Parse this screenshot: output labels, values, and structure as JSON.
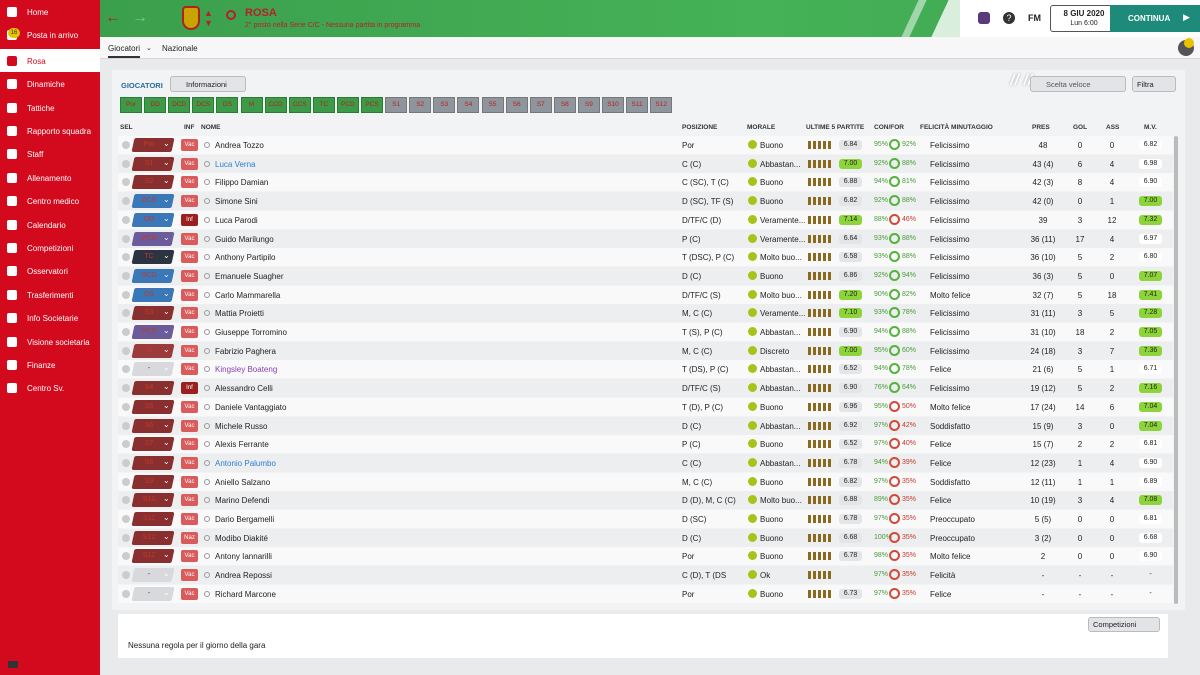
{
  "sidebar": {
    "items": [
      "Home",
      "Posta in arrivo",
      "Rosa",
      "Dinamiche",
      "Tattiche",
      "Rapporto squadra",
      "Staff",
      "Allenamento",
      "Centro medico",
      "Calendario",
      "Competizioni",
      "Osservatori",
      "Trasferimenti",
      "Info Societarie",
      "Visione societaria",
      "Finanze",
      "Centro Sv."
    ],
    "badge": "16"
  },
  "header": {
    "title": "ROSA",
    "subtitle": "2° posto nella Serie C/C - Nessuna partita in programma",
    "logo": "FM",
    "date": "8 GIU 2020",
    "time": "Lun 6:00",
    "continue": "CONTINUA"
  },
  "tabs": [
    "Giocatori",
    "Nazionale"
  ],
  "section": {
    "title": "GIOCATORI",
    "view": "Informazioni",
    "quick": "Scelta veloce",
    "filter": "Filtra"
  },
  "positions": [
    "Por",
    "DD",
    "DCD",
    "DCS",
    "DS",
    "M",
    "CCD",
    "CCS",
    "TC",
    "PCD",
    "PCS",
    "S1",
    "S2",
    "S3",
    "S4",
    "S5",
    "S6",
    "S7",
    "S8",
    "S9",
    "S10",
    "S11",
    "S12"
  ],
  "columns": [
    "SEL",
    "INF",
    "NOME",
    "POSIZIONE",
    "MORALE",
    "ULTIME 5 PARTITE",
    "CON/FOR",
    "FELICITÀ MINUTAGGIO",
    "PRES",
    "GOL",
    "ASS",
    "M.V."
  ],
  "rows": [
    {
      "role": "Por",
      "inf": "Vac",
      "name": "Andrea Tozzo",
      "position": "Por",
      "morale": "Buono",
      "rating": "6.84",
      "condition": "95%",
      "fitness": "92%",
      "happiness": "Felicissimo",
      "apps": "48",
      "goals": "0",
      "assists": "0",
      "avg": "6.82"
    },
    {
      "role": "S1",
      "inf": "Vac",
      "name": "Luca Verna",
      "name_color": "#2f7fd0",
      "position": "C (C)",
      "morale": "Abbastan...",
      "rating": "7.00",
      "condition": "92%",
      "fitness": "88%",
      "happiness": "Felicissimo",
      "apps": "43 (4)",
      "goals": "6",
      "assists": "4",
      "avg": "6.98"
    },
    {
      "role": "S2",
      "inf": "Vac",
      "name": "Filippo Damian",
      "position": "C (SC), T (C)",
      "morale": "Buono",
      "rating": "6.88",
      "condition": "94%",
      "fitness": "81%",
      "happiness": "Felicissimo",
      "apps": "42 (3)",
      "goals": "8",
      "assists": "4",
      "avg": "6.90"
    },
    {
      "role": "DCS",
      "inf": "Vac",
      "name": "Simone Sini",
      "position": "D (SC), TF (S)",
      "morale": "Buono",
      "rating": "6.82",
      "condition": "92%",
      "fitness": "88%",
      "happiness": "Felicissimo",
      "apps": "42 (0)",
      "goals": "0",
      "assists": "1",
      "avg": "7.00"
    },
    {
      "role": "DD",
      "inf": "Inf",
      "name": "Luca Parodi",
      "position": "D/TF/C (D)",
      "morale": "Veramente...",
      "rating": "7.14",
      "condition": "88%",
      "fitness": "46%",
      "happiness": "Felicissimo",
      "apps": "39",
      "goals": "3",
      "assists": "12",
      "avg": "7.32"
    },
    {
      "role": "PCD",
      "inf": "Vac",
      "name": "Guido Marilungo",
      "position": "P (C)",
      "morale": "Veramente...",
      "rating": "6.64",
      "condition": "93%",
      "fitness": "88%",
      "happiness": "Felicissimo",
      "apps": "36 (11)",
      "goals": "17",
      "assists": "4",
      "avg": "6.97"
    },
    {
      "role": "TC",
      "inf": "Vac",
      "name": "Anthony Partipilo",
      "position": "T (DSC), P (C)",
      "morale": "Molto buo...",
      "rating": "6.58",
      "condition": "93%",
      "fitness": "88%",
      "happiness": "Felicissimo",
      "apps": "36 (10)",
      "goals": "5",
      "assists": "2",
      "avg": "6.80"
    },
    {
      "role": "DCD",
      "inf": "Vac",
      "name": "Emanuele Suagher",
      "position": "D (C)",
      "morale": "Buono",
      "rating": "6.86",
      "condition": "92%",
      "fitness": "94%",
      "happiness": "Felicissimo",
      "apps": "36 (3)",
      "goals": "5",
      "assists": "0",
      "avg": "7.07"
    },
    {
      "role": "DS",
      "inf": "Vac",
      "name": "Carlo Mammarella",
      "position": "D/TF/C (S)",
      "morale": "Molto buo...",
      "rating": "7.20",
      "condition": "90%",
      "fitness": "82%",
      "happiness": "Molto felice",
      "apps": "32 (7)",
      "goals": "5",
      "assists": "18",
      "avg": "7.41"
    },
    {
      "role": "S3",
      "inf": "Vac",
      "name": "Mattia Proietti",
      "position": "M, C (C)",
      "morale": "Veramente...",
      "rating": "7.10",
      "condition": "93%",
      "fitness": "78%",
      "happiness": "Felicissimo",
      "apps": "31 (11)",
      "goals": "3",
      "assists": "5",
      "avg": "7.28"
    },
    {
      "role": "PCS",
      "inf": "Vac",
      "name": "Giuseppe Torromino",
      "position": "T (S), P (C)",
      "morale": "Abbastan...",
      "rating": "6.90",
      "condition": "94%",
      "fitness": "88%",
      "happiness": "Felicissimo",
      "apps": "31 (10)",
      "goals": "18",
      "assists": "2",
      "avg": "7.05"
    },
    {
      "role": "M",
      "inf": "Vac",
      "name": "Fabrizio Paghera",
      "position": "M, C (C)",
      "morale": "Discreto",
      "rating": "7.00",
      "condition": "95%",
      "fitness": "60%",
      "happiness": "Felicissimo",
      "apps": "24 (18)",
      "goals": "3",
      "assists": "7",
      "avg": "7.36"
    },
    {
      "role": "-",
      "inf": "Vac",
      "name": "Kingsley Boateng",
      "name_color": "#8a3fb0",
      "position": "T (DS), P (C)",
      "morale": "Abbastan...",
      "rating": "6.52",
      "condition": "94%",
      "fitness": "78%",
      "happiness": "Felice",
      "apps": "21 (6)",
      "goals": "5",
      "assists": "1",
      "avg": "6.71"
    },
    {
      "role": "S4",
      "inf": "Inf",
      "name": "Alessandro Celli",
      "position": "D/TF/C (S)",
      "morale": "Abbastan...",
      "rating": "6.90",
      "condition": "76%",
      "fitness": "64%",
      "happiness": "Felicissimo",
      "apps": "19 (12)",
      "goals": "5",
      "assists": "2",
      "avg": "7.16"
    },
    {
      "role": "S5",
      "inf": "Vac",
      "name": "Daniele Vantaggiato",
      "position": "T (D), P (C)",
      "morale": "Buono",
      "rating": "6.96",
      "condition": "95%",
      "fitness": "50%",
      "happiness": "Molto felice",
      "apps": "17 (24)",
      "goals": "14",
      "assists": "6",
      "avg": "7.04"
    },
    {
      "role": "S6",
      "inf": "Vac",
      "name": "Michele Russo",
      "position": "D (C)",
      "morale": "Abbastan...",
      "rating": "6.92",
      "condition": "97%",
      "fitness": "42%",
      "happiness": "Soddisfatto",
      "apps": "15 (9)",
      "goals": "3",
      "assists": "0",
      "avg": "7.04"
    },
    {
      "role": "S7",
      "inf": "Vac",
      "name": "Alexis Ferrante",
      "position": "P (C)",
      "morale": "Buono",
      "rating": "6.52",
      "condition": "97%",
      "fitness": "40%",
      "happiness": "Felice",
      "apps": "15 (7)",
      "goals": "2",
      "assists": "2",
      "avg": "6.81"
    },
    {
      "role": "S8",
      "inf": "Vac",
      "name": "Antonio Palumbo",
      "name_color": "#2f7fd0",
      "position": "C (C)",
      "morale": "Abbastan...",
      "rating": "6.78",
      "condition": "94%",
      "fitness": "39%",
      "happiness": "Felice",
      "apps": "12 (23)",
      "goals": "1",
      "assists": "4",
      "avg": "6.90"
    },
    {
      "role": "S9",
      "inf": "Vac",
      "name": "Aniello Salzano",
      "position": "M, C (C)",
      "morale": "Buono",
      "rating": "6.82",
      "condition": "97%",
      "fitness": "35%",
      "happiness": "Soddisfatto",
      "apps": "12 (11)",
      "goals": "1",
      "assists": "1",
      "avg": "6.89"
    },
    {
      "role": "S10",
      "inf": "Vac",
      "name": "Marino Defendi",
      "position": "D (D), M, C (C)",
      "morale": "Molto buo...",
      "rating": "6.88",
      "condition": "89%",
      "fitness": "35%",
      "happiness": "Felice",
      "apps": "10 (19)",
      "goals": "3",
      "assists": "4",
      "avg": "7.08"
    },
    {
      "role": "S11",
      "inf": "Vac",
      "name": "Dario Bergamelli",
      "position": "D (SC)",
      "morale": "Buono",
      "rating": "6.78",
      "condition": "97%",
      "fitness": "35%",
      "happiness": "Preoccupato",
      "apps": "5 (5)",
      "goals": "0",
      "assists": "0",
      "avg": "6.81"
    },
    {
      "role": "S12",
      "inf": "Naz",
      "name": "Modibo Diakité",
      "position": "D (C)",
      "morale": "Buono",
      "rating": "6.68",
      "condition": "100%",
      "fitness": "35%",
      "happiness": "Preoccupato",
      "apps": "3 (2)",
      "goals": "0",
      "assists": "0",
      "avg": "6.68"
    },
    {
      "role": "S12",
      "inf": "Vac",
      "name": "Antony Iannarilli",
      "position": "Por",
      "morale": "Buono",
      "rating": "6.78",
      "condition": "98%",
      "fitness": "35%",
      "happiness": "Molto felice",
      "apps": "2",
      "goals": "0",
      "assists": "0",
      "avg": "6.90"
    },
    {
      "role": "-",
      "inf": "Vac",
      "name": "Andrea Repossi",
      "position": "C (D), T (DS",
      "morale": "Ok",
      "condition": "97%",
      "fitness": "35%",
      "happiness": "Felicità",
      "apps": "-",
      "goals": "-",
      "assists": "-",
      "avg": "-"
    },
    {
      "role": "-",
      "inf": "Vac",
      "name": "Richard Marcone",
      "position": "Por",
      "morale": "Buono",
      "rating": "6.73",
      "condition": "97%",
      "fitness": "35%",
      "happiness": "Felice",
      "apps": "-",
      "goals": "-",
      "assists": "-",
      "avg": "-"
    }
  ],
  "footer": {
    "competitions": "Competizioni",
    "note": "Nessuna regola per il giorno della gara"
  }
}
